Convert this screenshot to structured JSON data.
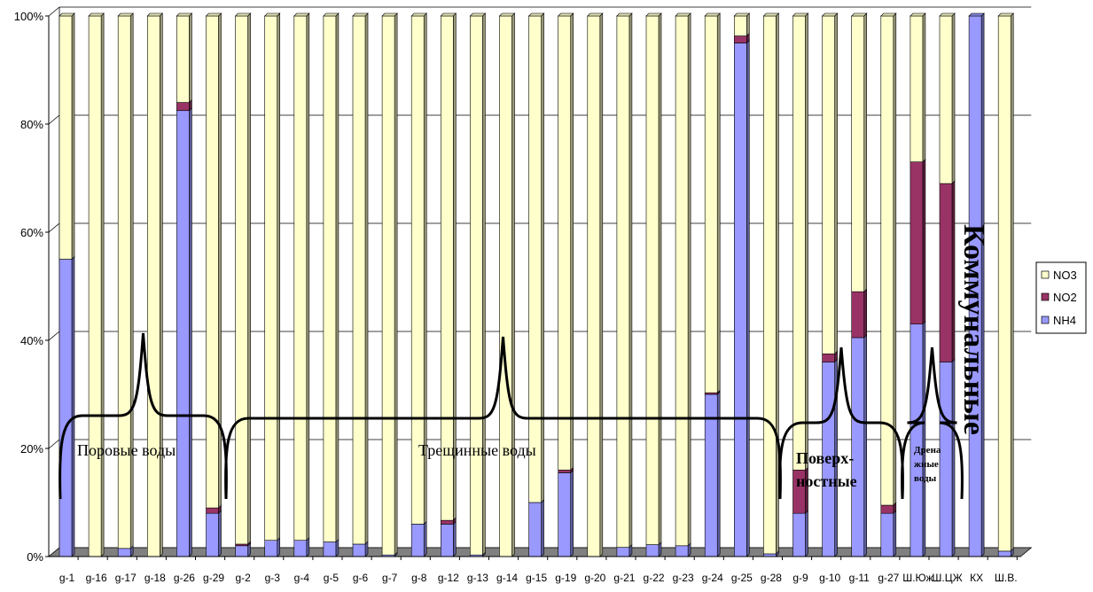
{
  "chart_data": {
    "type": "bar",
    "stacked": true,
    "percent_stacked": true,
    "three_d": true,
    "categories": [
      "g-1",
      "g-16",
      "g-17",
      "g-18",
      "g-26",
      "g-29",
      "g-2",
      "g-3",
      "g-4",
      "g-5",
      "g-6",
      "g-7",
      "g-8",
      "g-12",
      "g-13",
      "g-14",
      "g-15",
      "g-19",
      "g-20",
      "g-21",
      "g-22",
      "g-23",
      "g-24",
      "g-25",
      "g-28",
      "g-9",
      "g-10",
      "g-11",
      "g-27",
      "Ш.Юж",
      "Ш.ЦЖ",
      "КХ",
      "Ш.В."
    ],
    "series": [
      {
        "name": "NH4",
        "color": "#9999ff",
        "values": [
          55,
          0,
          1.5,
          0,
          82.5,
          8,
          2,
          3,
          3,
          2.7,
          2.3,
          0.3,
          6,
          6,
          0.3,
          0,
          10,
          15.5,
          0,
          1.7,
          2.2,
          2,
          30,
          95,
          0.5,
          8,
          36,
          40.5,
          8,
          43,
          36,
          100,
          1
        ]
      },
      {
        "name": "NO2",
        "color": "#993366",
        "values": [
          0,
          0,
          0,
          0,
          1.5,
          1,
          0.3,
          0,
          0,
          0,
          0,
          0,
          0,
          0.7,
          0,
          0,
          0,
          0.5,
          0,
          0,
          0,
          0,
          0.3,
          1.3,
          0,
          8,
          1.5,
          8.5,
          1.5,
          30,
          33,
          0,
          0
        ]
      },
      {
        "name": "NO3",
        "color": "#ffffcc",
        "values": [
          45,
          100,
          98.5,
          100,
          16,
          91,
          97.7,
          97,
          97,
          97.3,
          97.7,
          99.7,
          94,
          93.3,
          99.7,
          100,
          90,
          84,
          100,
          98.3,
          97.8,
          98,
          69.7,
          3.7,
          99.5,
          84,
          62.5,
          51,
          90.5,
          27,
          31,
          0,
          99
        ]
      }
    ],
    "y_axis": {
      "ylim": [
        0,
        100
      ],
      "ticks": [
        "0%",
        "20%",
        "40%",
        "60%",
        "80%",
        "100%"
      ]
    },
    "grid": true,
    "legend": {
      "position": "right",
      "entries": [
        "NO3",
        "NO2",
        "NH4"
      ]
    },
    "annotations": [
      {
        "text": "Поровые воды"
      },
      {
        "text": "Трещинные воды"
      },
      {
        "text": "Поверх-"
      },
      {
        "text": "ностные"
      },
      {
        "text": "Дрена"
      },
      {
        "text": "жные"
      },
      {
        "text": "воды"
      },
      {
        "text": "Коммунальные"
      }
    ]
  }
}
